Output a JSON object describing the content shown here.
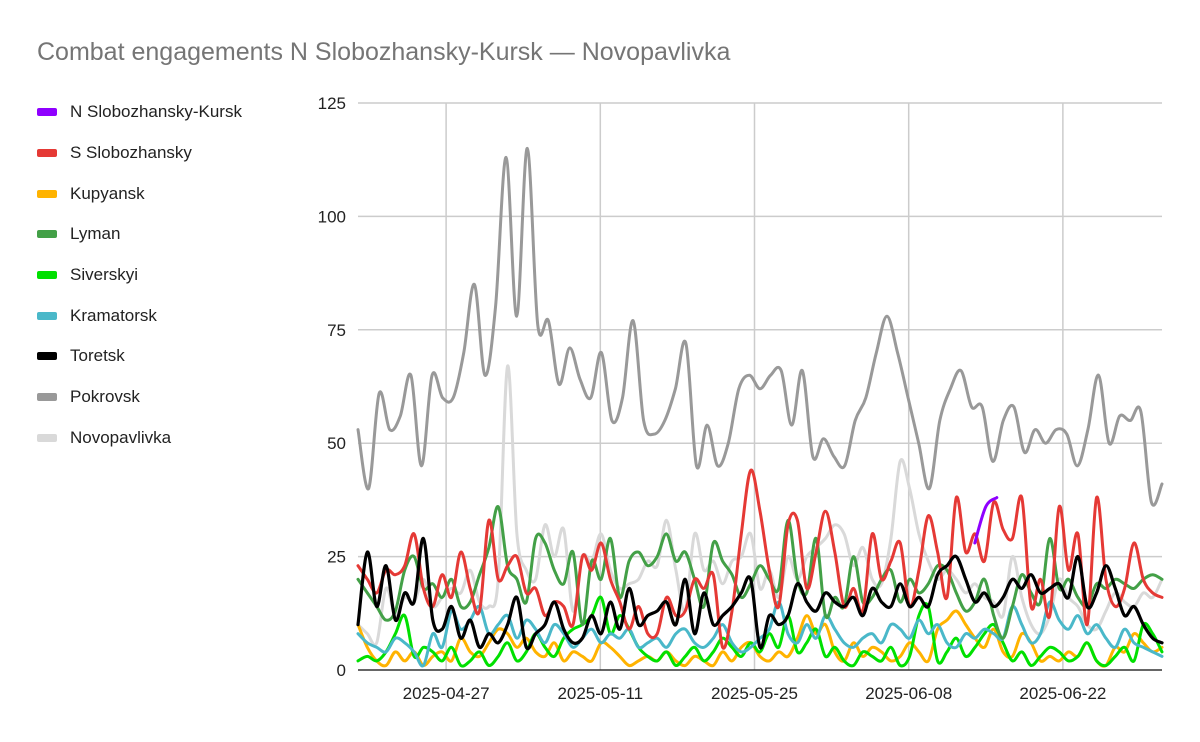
{
  "chart_data": {
    "type": "line",
    "title": "Combat engagements N Slobozhansky-Kursk — Novopavlivka",
    "xlabel": "",
    "ylabel": "",
    "x_range": [
      "2025-04-19",
      "2025-07-01"
    ],
    "ylim": [
      0,
      125
    ],
    "y_ticks": [
      0,
      25,
      50,
      75,
      100,
      125
    ],
    "x_ticks": [
      "2025-04-27",
      "2025-05-11",
      "2025-05-25",
      "2025-06-08",
      "2025-06-22"
    ],
    "grid": true,
    "legend_position": "left",
    "series": [
      {
        "name": "N Slobozhansky-Kursk",
        "color": "#8f00ff",
        "points": [
          [
            "2025-06-14",
            28
          ],
          [
            "2025-06-15",
            36
          ],
          [
            "2025-06-16",
            38
          ]
        ]
      },
      {
        "name": "S Slobozhansky",
        "color": "#e53935",
        "values": [
          23,
          20,
          17,
          22,
          21,
          23,
          30,
          18,
          14,
          21,
          16,
          26,
          18,
          13,
          33,
          20,
          23,
          25,
          17,
          18,
          12,
          15,
          14,
          10,
          25,
          22,
          28,
          20,
          15,
          9,
          14,
          8,
          8,
          16,
          12,
          13,
          20,
          18,
          21,
          5,
          13,
          30,
          44,
          35,
          22,
          14,
          32,
          33,
          18,
          26,
          35,
          26,
          14,
          18,
          13,
          30,
          20,
          24,
          28,
          14,
          22,
          34,
          26,
          16,
          38,
          26,
          30,
          24,
          37,
          31,
          29,
          38,
          14,
          20,
          12,
          36,
          22,
          30,
          10,
          38,
          20,
          14,
          18,
          28,
          20,
          17,
          16
        ]
      },
      {
        "name": "Kupyansk",
        "color": "#ffb300",
        "values": [
          10,
          5,
          2,
          1,
          4,
          2,
          4,
          1,
          3,
          4,
          2,
          7,
          4,
          3,
          6,
          9,
          8,
          5,
          7,
          4,
          3,
          6,
          2,
          4,
          3,
          2,
          6,
          5,
          3,
          1,
          2,
          3,
          2,
          4,
          2,
          1,
          3,
          2,
          1,
          4,
          2,
          5,
          6,
          3,
          2,
          4,
          3,
          7,
          12,
          8,
          10,
          4,
          2,
          6,
          3,
          5,
          4,
          2,
          3,
          6,
          4,
          2,
          9,
          11,
          13,
          10,
          7,
          5,
          9,
          4,
          3,
          8,
          6,
          2,
          3,
          2,
          4,
          3,
          6,
          2,
          1,
          5,
          4,
          8,
          6,
          4,
          5
        ]
      },
      {
        "name": "Lyman",
        "color": "#43a047",
        "values": [
          20,
          17,
          14,
          11,
          13,
          22,
          25,
          18,
          19,
          16,
          20,
          14,
          15,
          21,
          27,
          36,
          23,
          20,
          15,
          29,
          28,
          22,
          19,
          26,
          10,
          24,
          20,
          29,
          16,
          24,
          26,
          23,
          25,
          30,
          24,
          26,
          20,
          14,
          28,
          24,
          21,
          16,
          19,
          23,
          20,
          18,
          33,
          20,
          17,
          29,
          12,
          16,
          14,
          25,
          15,
          16,
          20,
          22,
          15,
          20,
          17,
          19,
          23,
          22,
          17,
          13,
          15,
          20,
          12,
          7,
          14,
          21,
          17,
          15,
          29,
          18,
          20,
          16,
          14,
          19,
          18,
          20,
          19,
          18,
          20,
          21,
          20
        ]
      },
      {
        "name": "Siverskyi",
        "color": "#00e000",
        "values": [
          2,
          3,
          2,
          4,
          8,
          12,
          3,
          5,
          4,
          2,
          5,
          1,
          2,
          4,
          1,
          3,
          6,
          2,
          4,
          8,
          5,
          3,
          7,
          9,
          10,
          12,
          16,
          8,
          12,
          9,
          5,
          3,
          2,
          4,
          1,
          3,
          5,
          2,
          4,
          7,
          5,
          3,
          6,
          4,
          8,
          5,
          12,
          4,
          6,
          9,
          3,
          5,
          2,
          1,
          4,
          3,
          2,
          5,
          1,
          3,
          12,
          14,
          2,
          4,
          7,
          3,
          5,
          8,
          10,
          6,
          2,
          4,
          1,
          3,
          5,
          4,
          2,
          3,
          6,
          2,
          1,
          3,
          5,
          2,
          10,
          8,
          4
        ]
      },
      {
        "name": "Kramatorsk",
        "color": "#4ab8c9",
        "values": [
          8,
          6,
          5,
          4,
          7,
          6,
          4,
          1,
          8,
          5,
          13,
          9,
          11,
          14,
          8,
          10,
          12,
          7,
          11,
          9,
          6,
          10,
          8,
          5,
          7,
          9,
          6,
          8,
          7,
          9,
          5,
          6,
          7,
          5,
          8,
          9,
          6,
          5,
          7,
          10,
          6,
          4,
          5,
          7,
          9,
          15,
          8,
          6,
          10,
          7,
          12,
          9,
          6,
          5,
          7,
          8,
          6,
          10,
          9,
          7,
          11,
          8,
          10,
          6,
          5,
          8,
          7,
          9,
          8,
          7,
          14,
          10,
          6,
          8,
          15,
          11,
          9,
          12,
          8,
          10,
          7,
          5,
          9,
          6,
          5,
          4,
          3
        ]
      },
      {
        "name": "Toretsk",
        "color": "#000000",
        "values": [
          10,
          26,
          14,
          23,
          11,
          17,
          15,
          29,
          11,
          9,
          14,
          7,
          11,
          5,
          8,
          6,
          10,
          16,
          5,
          8,
          10,
          15,
          9,
          6,
          7,
          12,
          8,
          15,
          9,
          18,
          10,
          12,
          13,
          15,
          10,
          20,
          8,
          17,
          10,
          12,
          14,
          17,
          20,
          5,
          12,
          10,
          12,
          19,
          15,
          13,
          17,
          15,
          14,
          16,
          12,
          18,
          15,
          14,
          19,
          14,
          16,
          14,
          21,
          23,
          25,
          20,
          15,
          17,
          14,
          16,
          20,
          18,
          21,
          17,
          18,
          19,
          16,
          25,
          14,
          17,
          23,
          18,
          12,
          14,
          10,
          7,
          6
        ]
      },
      {
        "name": "Pokrovsk",
        "color": "#999999",
        "values": [
          53,
          40,
          61,
          53,
          56,
          65,
          45,
          65,
          60,
          60,
          70,
          85,
          65,
          80,
          113,
          78,
          115,
          76,
          77,
          63,
          71,
          64,
          60,
          70,
          55,
          60,
          77,
          55,
          52,
          55,
          62,
          72,
          45,
          54,
          45,
          50,
          62,
          65,
          62,
          65,
          66,
          54,
          66,
          47,
          51,
          47,
          45,
          55,
          60,
          70,
          78,
          70,
          60,
          50,
          40,
          55,
          62,
          66,
          58,
          58,
          46,
          55,
          58,
          48,
          53,
          50,
          53,
          52,
          45,
          53,
          65,
          50,
          56,
          55,
          57,
          37,
          41
        ]
      },
      {
        "name": "Novopavlivka",
        "color": "#d9d9d9",
        "values": [
          10,
          8,
          6,
          18,
          12,
          16,
          15,
          20,
          14,
          16,
          18,
          17,
          22,
          15,
          14,
          20,
          67,
          30,
          22,
          20,
          32,
          25,
          31,
          13,
          25,
          24,
          30,
          22,
          18,
          19,
          20,
          24,
          23,
          33,
          22,
          13,
          30,
          22,
          24,
          19,
          24,
          25,
          30,
          18,
          22,
          16,
          25,
          20,
          25,
          27,
          29,
          32,
          30,
          23,
          27,
          20,
          19,
          29,
          46,
          40,
          30,
          24,
          20,
          22,
          20,
          17,
          19,
          16,
          15,
          12,
          25,
          16,
          10,
          8,
          12,
          20,
          16,
          14,
          10,
          9,
          13,
          17,
          15,
          14,
          17,
          16,
          20
        ]
      }
    ]
  }
}
